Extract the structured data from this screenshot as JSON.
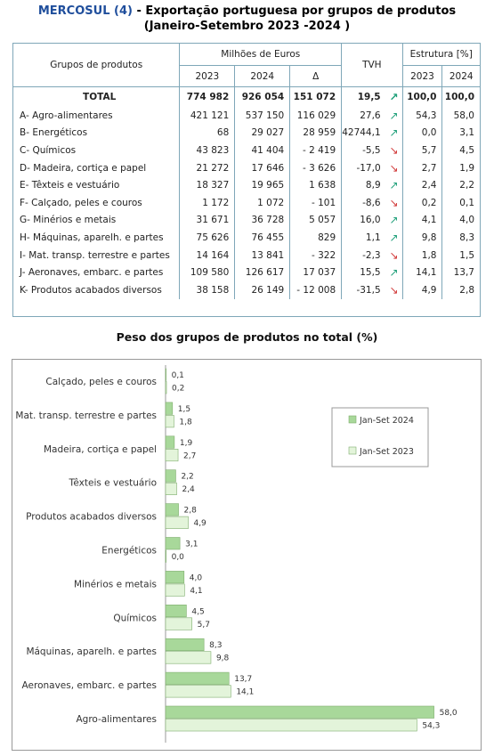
{
  "header": {
    "title_accent": "MERCOSUL (4)",
    "title_rest": " - Exportação portuguesa por grupos de produtos",
    "title_line2": "(Janeiro-Setembro 2023 -2024 )"
  },
  "table": {
    "col_group": "Grupos de produtos",
    "col_millions": "Milhões de Euros",
    "col_tvh": "TVH",
    "col_structure": "Estrutura [%]",
    "col_2023": "2023",
    "col_2024": "2024",
    "col_delta": "Δ",
    "col_s2023": "2023",
    "col_s2024": "2024",
    "arrow_up": "↗",
    "arrow_down": "↘",
    "total": {
      "name": "TOTAL",
      "v2023": "774 982",
      "v2024": "926 054",
      "delta": "151 072",
      "tvh": "19,5",
      "trend": "up",
      "s2023": "100,0",
      "s2024": "100,0"
    },
    "rows": [
      {
        "name": "A- Agro-alimentares",
        "v2023": "421 121",
        "v2024": "537 150",
        "delta": "116 029",
        "tvh": "27,6",
        "trend": "up",
        "s2023": "54,3",
        "s2024": "58,0"
      },
      {
        "name": "B- Energéticos",
        "v2023": "68",
        "v2024": "29 027",
        "delta": "28 959",
        "tvh": "42744,1",
        "trend": "up",
        "s2023": "0,0",
        "s2024": "3,1"
      },
      {
        "name": "C- Químicos",
        "v2023": "43 823",
        "v2024": "41 404",
        "delta": "- 2 419",
        "tvh": "-5,5",
        "trend": "down",
        "s2023": "5,7",
        "s2024": "4,5"
      },
      {
        "name": "D- Madeira, cortiça e papel",
        "v2023": "21 272",
        "v2024": "17 646",
        "delta": "- 3 626",
        "tvh": "-17,0",
        "trend": "down",
        "s2023": "2,7",
        "s2024": "1,9"
      },
      {
        "name": "E- Têxteis e vestuário",
        "v2023": "18 327",
        "v2024": "19 965",
        "delta": "1 638",
        "tvh": "8,9",
        "trend": "up",
        "s2023": "2,4",
        "s2024": "2,2"
      },
      {
        "name": "F- Calçado, peles e couros",
        "v2023": "1 172",
        "v2024": "1 072",
        "delta": "- 101",
        "tvh": "-8,6",
        "trend": "down",
        "s2023": "0,2",
        "s2024": "0,1"
      },
      {
        "name": "G- Minérios e metais",
        "v2023": "31 671",
        "v2024": "36 728",
        "delta": "5 057",
        "tvh": "16,0",
        "trend": "up",
        "s2023": "4,1",
        "s2024": "4,0"
      },
      {
        "name": "H- Máquinas, aparelh. e partes",
        "v2023": "75 626",
        "v2024": "76 455",
        "delta": "829",
        "tvh": "1,1",
        "trend": "up",
        "s2023": "9,8",
        "s2024": "8,3"
      },
      {
        "name": "I- Mat. transp. terrestre e partes",
        "v2023": "14 164",
        "v2024": "13 841",
        "delta": "- 322",
        "tvh": "-2,3",
        "trend": "down",
        "s2023": "1,8",
        "s2024": "1,5"
      },
      {
        "name": "J- Aeronaves, embarc. e partes",
        "v2023": "109 580",
        "v2024": "126 617",
        "delta": "17 037",
        "tvh": "15,5",
        "trend": "up",
        "s2023": "14,1",
        "s2024": "13,7"
      },
      {
        "name": "K- Produtos acabados diversos",
        "v2023": "38 158",
        "v2024": "26 149",
        "delta": "- 12 008",
        "tvh": "-31,5",
        "trend": "down",
        "s2023": "4,9",
        "s2024": "2,8"
      }
    ]
  },
  "chart_data": {
    "type": "bar",
    "orientation": "horizontal",
    "title": "Peso dos grupos de produtos no total (%)",
    "categories": [
      "Calçado, peles e couros",
      "Mat. transp. terrestre e partes",
      "Madeira, cortiça e papel",
      "Têxteis e vestuário",
      "Produtos acabados diversos",
      "Energéticos",
      "Minérios e metais",
      "Químicos",
      "Máquinas, aparelh. e partes",
      "Aeronaves, embarc. e partes",
      "Agro-alimentares"
    ],
    "series": [
      {
        "name": "Jan-Set 2024",
        "color": "#a8d89a",
        "values": [
          0.1,
          1.5,
          1.9,
          2.2,
          2.8,
          3.1,
          4.0,
          4.5,
          8.3,
          13.7,
          58.0
        ],
        "labels": [
          "0,1",
          "1,5",
          "1,9",
          "2,2",
          "2,8",
          "3,1",
          "4,0",
          "4,5",
          "8,3",
          "13,7",
          "58,0"
        ]
      },
      {
        "name": "Jan-Set 2023",
        "color": "#e3f4da",
        "values": [
          0.2,
          1.8,
          2.7,
          2.4,
          4.9,
          0.0,
          4.1,
          5.7,
          9.8,
          14.1,
          54.3
        ],
        "labels": [
          "0,2",
          "1,8",
          "2,7",
          "2,4",
          "4,9",
          "0,0",
          "4,1",
          "5,7",
          "9,8",
          "14,1",
          "54,3"
        ]
      }
    ],
    "xlim": [
      0,
      60
    ],
    "legend": "right",
    "grid": false
  }
}
